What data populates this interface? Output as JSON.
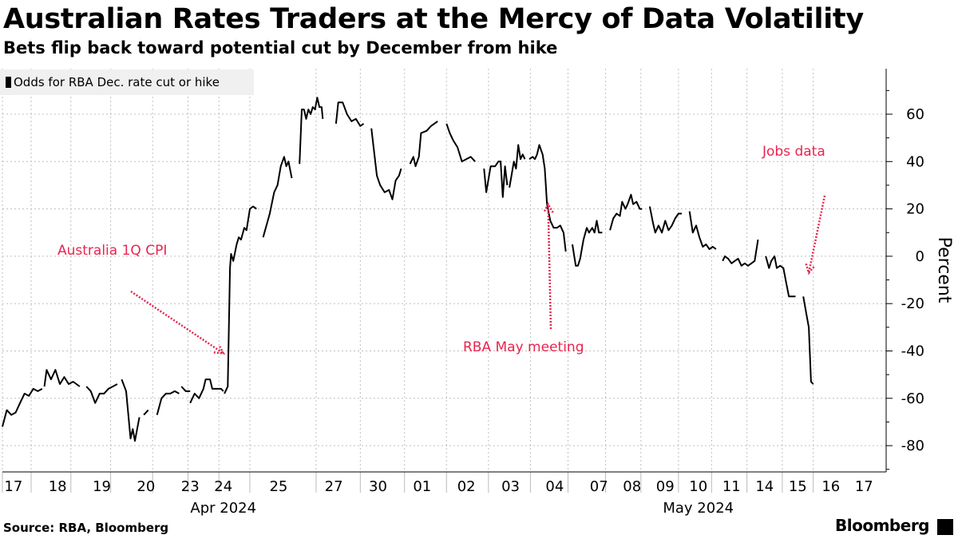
{
  "title": "Australian Rates Traders at the Mercy of Data Volatility",
  "subtitle": "Bets flip back toward potential cut by December from hike",
  "source": "Source: RBA, Bloomberg",
  "brand": "Bloomberg",
  "colors": {
    "line": "#000000",
    "annotation": "#e8254e",
    "grid": "#bfbfbf",
    "legend_bg": "#f0f0f0"
  },
  "chart_data": {
    "type": "line",
    "title": "Australian Rates Traders at the Mercy of Data Volatility",
    "ylabel": "Percent",
    "ylim": [
      -90,
      80
    ],
    "yticks": [
      60,
      40,
      20,
      0,
      -20,
      -40,
      -60,
      -80
    ],
    "legend": "top-left",
    "series": [
      {
        "name": "Odds for RBA Dec. rate cut or hike",
        "segments": [
          [
            [
              0,
              -72
            ],
            [
              0.2,
              -65
            ],
            [
              0.4,
              -67
            ],
            [
              0.6,
              -66
            ],
            [
              0.8,
              -62
            ],
            [
              1.0,
              -58
            ],
            [
              1.2,
              -59
            ],
            [
              1.4,
              -56
            ],
            [
              1.6,
              -57
            ],
            [
              1.8,
              -56
            ]
          ],
          [
            [
              1.9,
              -55
            ],
            [
              2.0,
              -48
            ],
            [
              2.2,
              -52
            ],
            [
              2.4,
              -48
            ],
            [
              2.6,
              -54
            ],
            [
              2.8,
              -51
            ],
            [
              3.0,
              -54
            ],
            [
              3.2,
              -53
            ],
            [
              3.5,
              -55
            ]
          ],
          [
            [
              3.8,
              -55
            ],
            [
              4.0,
              -57
            ],
            [
              4.2,
              -62
            ],
            [
              4.4,
              -58
            ],
            [
              4.6,
              -58
            ],
            [
              4.8,
              -56
            ],
            [
              5.0,
              -55
            ],
            [
              5.2,
              -54
            ]
          ],
          [
            [
              5.4,
              -52
            ],
            [
              5.6,
              -57
            ],
            [
              5.8,
              -77
            ],
            [
              5.9,
              -73
            ],
            [
              6.0,
              -78
            ],
            [
              6.2,
              -68
            ]
          ],
          [
            [
              6.4,
              -67
            ],
            [
              6.6,
              -65
            ]
          ],
          [
            [
              7.0,
              -67
            ],
            [
              7.2,
              -60
            ],
            [
              7.4,
              -58
            ],
            [
              7.6,
              -58
            ],
            [
              7.8,
              -57
            ],
            [
              8.0,
              -58
            ]
          ],
          [
            [
              8.1,
              -55
            ],
            [
              8.3,
              -57
            ],
            [
              8.5,
              -57
            ]
          ],
          [
            [
              8.5,
              -62
            ],
            [
              8.7,
              -58
            ],
            [
              8.9,
              -60
            ],
            [
              9.1,
              -56
            ],
            [
              9.2,
              -52
            ],
            [
              9.4,
              -52
            ],
            [
              9.5,
              -56
            ],
            [
              9.7,
              -56
            ],
            [
              9.9,
              -56
            ],
            [
              10.0,
              -57
            ]
          ],
          [
            [
              10.05,
              -58
            ],
            [
              10.1,
              -57
            ],
            [
              10.2,
              -55
            ],
            [
              10.3,
              -5
            ],
            [
              10.35,
              1
            ],
            [
              10.45,
              -2
            ],
            [
              10.6,
              5
            ],
            [
              10.7,
              8
            ],
            [
              10.8,
              7
            ],
            [
              10.95,
              12
            ],
            [
              11.05,
              11
            ],
            [
              11.2,
              20
            ],
            [
              11.35,
              21
            ],
            [
              11.5,
              20
            ]
          ],
          [
            [
              11.8,
              8
            ],
            [
              12.1,
              18
            ],
            [
              12.3,
              27
            ],
            [
              12.45,
              30
            ],
            [
              12.6,
              38
            ],
            [
              12.75,
              42
            ],
            [
              12.85,
              38
            ],
            [
              12.95,
              40
            ],
            [
              13.1,
              33
            ]
          ],
          [
            [
              13.45,
              39
            ],
            [
              13.55,
              62
            ],
            [
              13.65,
              62
            ],
            [
              13.75,
              58
            ],
            [
              13.85,
              62
            ],
            [
              13.95,
              60
            ],
            [
              14.05,
              63
            ],
            [
              14.15,
              62
            ],
            [
              14.25,
              67
            ],
            [
              14.35,
              63
            ],
            [
              14.45,
              63
            ],
            [
              14.5,
              58
            ]
          ],
          [
            [
              15.1,
              56
            ],
            [
              15.2,
              65
            ],
            [
              15.4,
              65
            ],
            [
              15.6,
              60
            ],
            [
              15.8,
              57
            ],
            [
              16.0,
              58
            ],
            [
              16.2,
              55
            ],
            [
              16.35,
              56
            ]
          ],
          [
            [
              16.7,
              54
            ],
            [
              16.95,
              34
            ],
            [
              17.1,
              30
            ],
            [
              17.3,
              27
            ],
            [
              17.5,
              28
            ],
            [
              17.65,
              24
            ],
            [
              17.8,
              32
            ],
            [
              17.95,
              34
            ],
            [
              18.05,
              37
            ]
          ],
          [
            [
              18.45,
              39
            ],
            [
              18.6,
              42
            ],
            [
              18.7,
              38
            ],
            [
              18.85,
              42
            ],
            [
              18.95,
              52
            ],
            [
              19.2,
              53
            ],
            [
              19.4,
              55
            ],
            [
              19.55,
              56
            ],
            [
              19.7,
              57
            ]
          ],
          [
            [
              20.1,
              56
            ],
            [
              20.25,
              52
            ],
            [
              20.4,
              49
            ],
            [
              20.6,
              46
            ],
            [
              20.8,
              40
            ],
            [
              21.0,
              41
            ],
            [
              21.2,
              42
            ],
            [
              21.4,
              40
            ]
          ],
          [
            [
              21.8,
              37
            ],
            [
              21.9,
              27
            ],
            [
              22.1,
              38
            ],
            [
              22.3,
              38
            ],
            [
              22.45,
              40
            ],
            [
              22.55,
              40
            ],
            [
              22.65,
              25
            ],
            [
              22.75,
              38
            ],
            [
              22.85,
              30
            ]
          ],
          [
            [
              22.95,
              29
            ],
            [
              23.15,
              40
            ],
            [
              23.25,
              37
            ],
            [
              23.35,
              47
            ],
            [
              23.45,
              41
            ],
            [
              23.55,
              43
            ],
            [
              23.65,
              41
            ]
          ],
          [
            [
              23.85,
              41
            ],
            [
              24.0,
              42
            ],
            [
              24.1,
              41
            ],
            [
              24.2,
              43
            ],
            [
              24.3,
              47
            ],
            [
              24.45,
              43
            ],
            [
              24.55,
              37
            ],
            [
              24.65,
              22
            ],
            [
              24.8,
              15
            ],
            [
              24.95,
              12
            ],
            [
              25.1,
              12
            ],
            [
              25.25,
              13
            ],
            [
              25.4,
              10
            ],
            [
              25.5,
              2
            ]
          ],
          [
            [
              25.8,
              5
            ],
            [
              25.95,
              -4
            ],
            [
              26.05,
              -4
            ],
            [
              26.15,
              -1
            ],
            [
              26.3,
              7
            ],
            [
              26.45,
              12
            ],
            [
              26.55,
              10
            ],
            [
              26.7,
              12
            ],
            [
              26.8,
              10
            ],
            [
              26.9,
              15
            ],
            [
              27.0,
              10
            ],
            [
              27.15,
              10
            ]
          ],
          [
            [
              27.5,
              11
            ],
            [
              27.65,
              16
            ],
            [
              27.8,
              18
            ],
            [
              27.95,
              17
            ],
            [
              28.05,
              23
            ],
            [
              28.2,
              20
            ],
            [
              28.3,
              22
            ],
            [
              28.45,
              26
            ],
            [
              28.55,
              22
            ],
            [
              28.7,
              23
            ],
            [
              28.85,
              20
            ],
            [
              28.95,
              20
            ]
          ],
          [
            [
              29.3,
              21
            ],
            [
              29.45,
              14
            ],
            [
              29.55,
              10
            ],
            [
              29.7,
              13
            ],
            [
              29.85,
              10
            ],
            [
              30.0,
              15
            ],
            [
              30.15,
              11
            ],
            [
              30.3,
              13
            ],
            [
              30.45,
              16
            ],
            [
              30.6,
              18
            ],
            [
              30.75,
              18
            ]
          ],
          [
            [
              31.1,
              19
            ],
            [
              31.25,
              10
            ],
            [
              31.4,
              13
            ],
            [
              31.55,
              8
            ],
            [
              31.7,
              4
            ],
            [
              31.85,
              5
            ],
            [
              32.0,
              3
            ],
            [
              32.15,
              4
            ],
            [
              32.3,
              3
            ]
          ],
          [
            [
              32.6,
              -2
            ],
            [
              32.7,
              0
            ],
            [
              32.85,
              -1
            ],
            [
              33.0,
              -3
            ],
            [
              33.15,
              -2
            ],
            [
              33.3,
              -1
            ],
            [
              33.45,
              -4
            ],
            [
              33.6,
              -3
            ],
            [
              33.75,
              -4
            ],
            [
              33.9,
              -3
            ],
            [
              34.05,
              -2
            ],
            [
              34.2,
              7
            ]
          ],
          [
            [
              34.55,
              0
            ],
            [
              34.7,
              -5
            ],
            [
              34.8,
              -2
            ],
            [
              34.95,
              0
            ],
            [
              35.05,
              -5
            ],
            [
              35.2,
              -4
            ],
            [
              35.35,
              -5
            ],
            [
              35.45,
              -10
            ],
            [
              35.6,
              -17
            ],
            [
              35.75,
              -17
            ],
            [
              35.9,
              -17
            ]
          ],
          [
            [
              36.25,
              -17
            ],
            [
              36.4,
              -25
            ],
            [
              36.5,
              -30
            ],
            [
              36.6,
              -53
            ],
            [
              36.7,
              -54
            ]
          ]
        ]
      }
    ],
    "x_ticks": [
      {
        "label": "17",
        "index": 0.5
      },
      {
        "label": "18",
        "index": 2.5
      },
      {
        "label": "19",
        "index": 4.5
      },
      {
        "label": "20",
        "index": 6.5
      },
      {
        "label": "23",
        "index": 8.5
      },
      {
        "label": "24",
        "index": 10.0
      },
      {
        "label": "25",
        "index": 12.5
      },
      {
        "label": "27",
        "index": 15.0
      },
      {
        "label": "30",
        "index": 17.0
      },
      {
        "label": "01",
        "index": 19.0
      },
      {
        "label": "02",
        "index": 21.0
      },
      {
        "label": "03",
        "index": 23.0
      },
      {
        "label": "04",
        "index": 25.0
      },
      {
        "label": "07",
        "index": 27.0
      },
      {
        "label": "08",
        "index": 28.5
      },
      {
        "label": "09",
        "index": 30.0
      },
      {
        "label": "10",
        "index": 31.5
      },
      {
        "label": "11",
        "index": 33.0
      },
      {
        "label": "14",
        "index": 34.5
      },
      {
        "label": "15",
        "index": 36.0
      },
      {
        "label": "16",
        "index": 37.5
      },
      {
        "label": "17",
        "index": 39.0
      }
    ],
    "x_separators": [
      0,
      1.3,
      3.1,
      4.9,
      6.8,
      8.4,
      9.8,
      11.2,
      14.2,
      16.2,
      18.2,
      20.1,
      22.0,
      23.9,
      25.6,
      27.3,
      28.9,
      30.6,
      32.1,
      33.7,
      35.3,
      36.7
    ],
    "month_labels": [
      {
        "label": "Apr 2024",
        "index": 10.0
      },
      {
        "label": "May 2024",
        "index": 31.5
      }
    ],
    "annotations": [
      {
        "text": "Australia 1Q CPI",
        "arrow_to": {
          "index": 10.0,
          "y": -41
        }
      },
      {
        "text": "RBA May meeting",
        "arrow_to": {
          "index": 24.7,
          "y": 22
        }
      },
      {
        "text": "Jobs data",
        "arrow_to": {
          "index": 36.5,
          "y": -7
        }
      }
    ]
  }
}
